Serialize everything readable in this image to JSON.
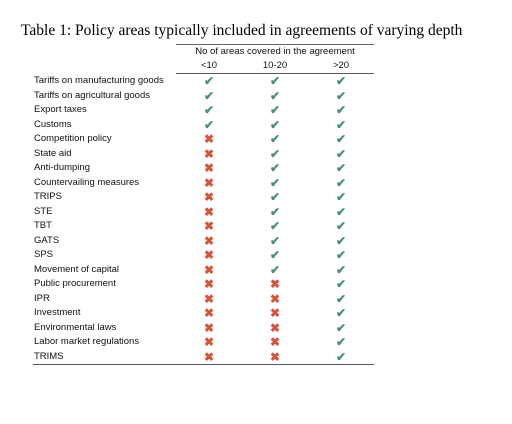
{
  "title": "Table 1: Policy areas typically included in agreements of varying depth",
  "header": {
    "group_label": "No of areas covered in the agreement",
    "columns": [
      "<10",
      "10-20",
      ">20"
    ]
  },
  "colors": {
    "check": "#4a8f76",
    "cross": "#d6543d"
  },
  "rows": [
    {
      "label": "Tariffs on manufacturing goods",
      "marks": [
        "check",
        "check",
        "check"
      ]
    },
    {
      "label": "Tariffs on agricultural goods",
      "marks": [
        "check",
        "check",
        "check"
      ]
    },
    {
      "label": "Export taxes",
      "marks": [
        "check",
        "check",
        "check"
      ]
    },
    {
      "label": "Customs",
      "marks": [
        "check",
        "check",
        "check"
      ]
    },
    {
      "label": "Competition policy",
      "marks": [
        "cross",
        "check",
        "check"
      ]
    },
    {
      "label": "State aid",
      "marks": [
        "cross",
        "check",
        "check"
      ]
    },
    {
      "label": "Anti-dumping",
      "marks": [
        "cross",
        "check",
        "check"
      ]
    },
    {
      "label": "Countervailing measures",
      "marks": [
        "cross",
        "check",
        "check"
      ]
    },
    {
      "label": "TRIPS",
      "marks": [
        "cross",
        "check",
        "check"
      ]
    },
    {
      "label": "STE",
      "marks": [
        "cross",
        "check",
        "check"
      ]
    },
    {
      "label": "TBT",
      "marks": [
        "cross",
        "check",
        "check"
      ]
    },
    {
      "label": "GATS",
      "marks": [
        "cross",
        "check",
        "check"
      ]
    },
    {
      "label": "SPS",
      "marks": [
        "cross",
        "check",
        "check"
      ]
    },
    {
      "label": "Movement of capital",
      "marks": [
        "cross",
        "check",
        "check"
      ]
    },
    {
      "label": "Public procurement",
      "marks": [
        "cross",
        "cross",
        "check"
      ]
    },
    {
      "label": "IPR",
      "marks": [
        "cross",
        "cross",
        "check"
      ]
    },
    {
      "label": "Investment",
      "marks": [
        "cross",
        "cross",
        "check"
      ]
    },
    {
      "label": "Environmental laws",
      "marks": [
        "cross",
        "cross",
        "check"
      ]
    },
    {
      "label": "Labor market regulations",
      "marks": [
        "cross",
        "cross",
        "check"
      ]
    },
    {
      "label": "TRIMS",
      "marks": [
        "cross",
        "cross",
        "check"
      ]
    }
  ]
}
